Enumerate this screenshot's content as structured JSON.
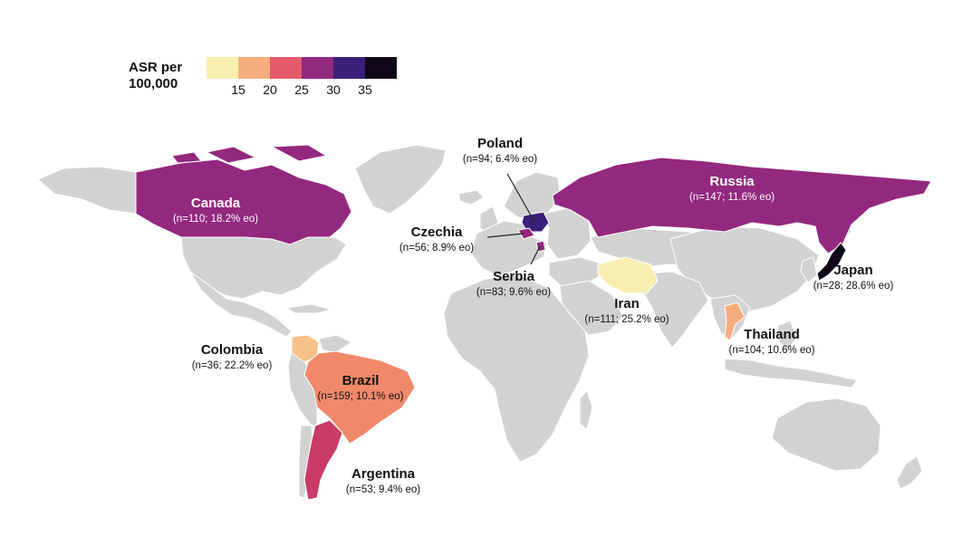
{
  "legend": {
    "title_line1": "ASR per",
    "title_line2": "100,000",
    "colors": [
      "#f9eeb0",
      "#f6ac7c",
      "#e55a6b",
      "#93287f",
      "#3b2079",
      "#0f0818"
    ],
    "ticks": [
      "15",
      "20",
      "25",
      "30",
      "35"
    ]
  },
  "colors": {
    "land": "#d2d2d2",
    "border": "#ffffff",
    "leader": "#222222"
  },
  "countries": [
    {
      "id": "canada",
      "name": "Canada",
      "stat": "(n=110; 18.2% eo)",
      "asr_color": "#93287f"
    },
    {
      "id": "russia",
      "name": "Russia",
      "stat": "(n=147; 11.6% eo)",
      "asr_color": "#93287f"
    },
    {
      "id": "poland",
      "name": "Poland",
      "stat": "(n=94; 6.4% eo)",
      "asr_color": "#3b2079"
    },
    {
      "id": "czechia",
      "name": "Czechia",
      "stat": "(n=56; 8.9% eo)",
      "asr_color": "#93287f"
    },
    {
      "id": "serbia",
      "name": "Serbia",
      "stat": "(n=83; 9.6% eo)",
      "asr_color": "#93287f"
    },
    {
      "id": "iran",
      "name": "Iran",
      "stat": "(n=111; 25.2% eo)",
      "asr_color": "#f9eeb0"
    },
    {
      "id": "japan",
      "name": "Japan",
      "stat": "(n=28; 28.6% eo)",
      "asr_color": "#0f0818"
    },
    {
      "id": "thailand",
      "name": "Thailand",
      "stat": "(n=104; 10.6% eo)",
      "asr_color": "#f6ac7c"
    },
    {
      "id": "colombia",
      "name": "Colombia",
      "stat": "(n=36; 22.2% eo)",
      "asr_color": "#f6c28a"
    },
    {
      "id": "brazil",
      "name": "Brazil",
      "stat": "(n=159; 10.1% eo)",
      "asr_color": "#f0896a"
    },
    {
      "id": "argentina",
      "name": "Argentina",
      "stat": "(n=53; 9.4% eo)",
      "asr_color": "#c93b67"
    }
  ]
}
